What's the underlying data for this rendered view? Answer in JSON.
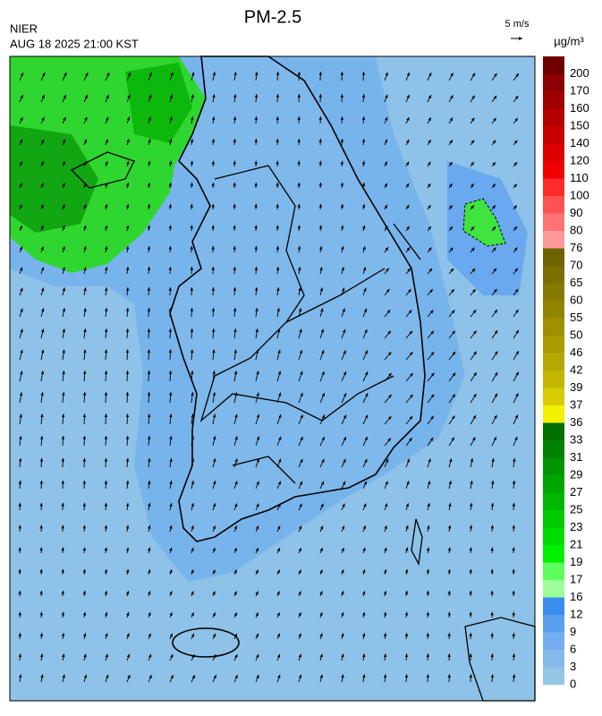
{
  "header": {
    "title": "PM-2.5",
    "agency": "NIER",
    "datetime": "AUG 18 2025 21:00 KST",
    "wind_scale": "5 m/s"
  },
  "legend": {
    "unit": "µg/m³",
    "labels": [
      "200",
      "170",
      "160",
      "150",
      "140",
      "120",
      "110",
      "100",
      "90",
      "80",
      "76",
      "70",
      "65",
      "60",
      "55",
      "50",
      "46",
      "42",
      "39",
      "37",
      "36",
      "33",
      "31",
      "29",
      "27",
      "25",
      "23",
      "21",
      "19",
      "17",
      "16",
      "12",
      "9",
      "6",
      "3",
      "0"
    ],
    "colors": [
      "#6e0000",
      "#8b0000",
      "#a00000",
      "#b40000",
      "#c80000",
      "#dc0000",
      "#f00000",
      "#ff2a2a",
      "#ff5252",
      "#ff7373",
      "#ff9999",
      "#6e6400",
      "#7a6f00",
      "#867a00",
      "#928500",
      "#9e9000",
      "#aa9c00",
      "#b6a800",
      "#c4b600",
      "#d6cc00",
      "#f0f000",
      "#007000",
      "#008200",
      "#009400",
      "#00a600",
      "#00b800",
      "#00ca00",
      "#00dc00",
      "#00f000",
      "#5cff5c",
      "#9cff9c",
      "#3a8ef0",
      "#5a9ef0",
      "#74aef0",
      "#86baea",
      "#94c6e6"
    ]
  }
}
